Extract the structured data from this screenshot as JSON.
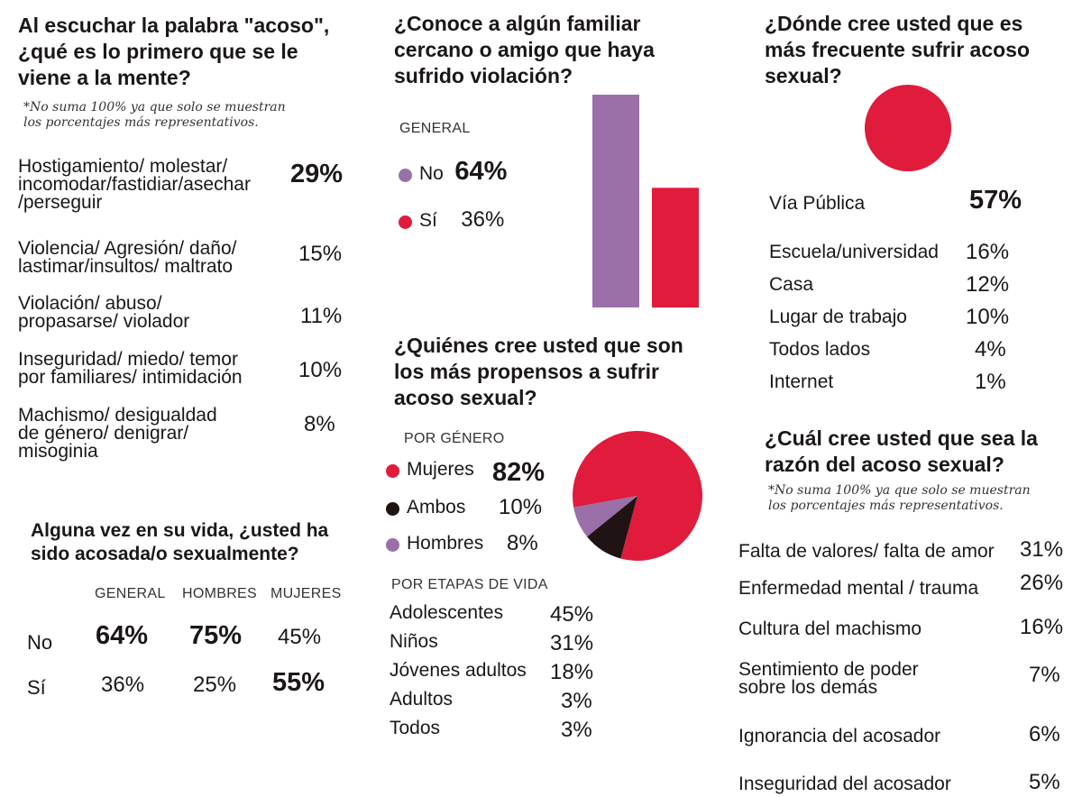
{
  "colors": {
    "purple": "#9b6fa8",
    "red": "#e01b3c",
    "black": "#1f1413",
    "white": "#ffffff"
  },
  "q1": {
    "title_lines": [
      "Al escuchar la palabra \"acoso\",",
      "¿qué es lo primero que se le",
      "viene a la mente?"
    ],
    "note_lines": [
      "*No suma 100% ya que solo se muestran",
      "los porcentajes más representativos."
    ],
    "rows": [
      {
        "lines": [
          "Hostigamiento/ molestar/",
          "incomodar/fastidiar/asechar",
          "/perseguir"
        ],
        "value": "29%"
      },
      {
        "lines": [
          "Violencia/ Agresión/ daño/",
          "lastimar/insultos/ maltrato"
        ],
        "value": "15%"
      },
      {
        "lines": [
          "Violación/ abuso/",
          "propasarse/ violador"
        ],
        "value": "11%"
      },
      {
        "lines": [
          "Inseguridad/ miedo/ temor",
          "por familiares/ intimidación"
        ],
        "value": "10%"
      },
      {
        "lines": [
          "Machismo/ desigualdad",
          "de género/ denigrar/",
          "misoginia"
        ],
        "value": "8%"
      }
    ]
  },
  "q2": {
    "title_lines": [
      "Alguna vez en su vida, ¿usted ha",
      "sido acosada/o sexualmente?"
    ],
    "columns": [
      "GENERAL",
      "HOMBRES",
      "MUJERES"
    ],
    "rows": [
      {
        "label": "No",
        "values": [
          "64%",
          "75%",
          "45%"
        ]
      },
      {
        "label": "Sí",
        "values": [
          "36%",
          "25%",
          "55%"
        ]
      }
    ]
  },
  "q3": {
    "title_lines": [
      "¿Conoce a algún familiar",
      "cercano o amigo que haya",
      "sufrido violación?"
    ],
    "caption": "GENERAL",
    "legend": [
      {
        "label": "No",
        "value": "64%"
      },
      {
        "label": "Sí",
        "value": "36%"
      }
    ]
  },
  "q4": {
    "title_lines": [
      "¿Quiénes cree usted que son",
      "los más propensos a sufrir",
      "acoso sexual?"
    ],
    "caption_gender": "POR GÉNERO",
    "legend": [
      {
        "label": "Mujeres",
        "value": "82%"
      },
      {
        "label": "Ambos",
        "value": "10%"
      },
      {
        "label": "Hombres",
        "value": "8%"
      }
    ],
    "caption_stage": "POR ETAPAS DE VIDA",
    "stages": [
      {
        "label": "Adolescentes",
        "value": "45%"
      },
      {
        "label": "Niños",
        "value": "31%"
      },
      {
        "label": "Jóvenes adultos",
        "value": "18%"
      },
      {
        "label": "Adultos",
        "value": "3%"
      },
      {
        "label": "Todos",
        "value": "3%"
      }
    ]
  },
  "q5": {
    "title_lines": [
      "¿Dónde cree usted que es",
      "más frecuente sufrir acoso",
      "sexual?"
    ],
    "top": {
      "label": "Vía Pública",
      "value": "57%"
    },
    "rows": [
      {
        "label": "Escuela/universidad",
        "value": "16%"
      },
      {
        "label": "Casa",
        "value": "12%"
      },
      {
        "label": "Lugar de trabajo",
        "value": "10%"
      },
      {
        "label": "Todos lados",
        "value": "4%"
      },
      {
        "label": "Internet",
        "value": "1%"
      }
    ]
  },
  "q6": {
    "title_lines": [
      "¿Cuál cree usted que sea la",
      "razón del acoso sexual?"
    ],
    "note_lines": [
      "*No suma 100% ya que solo se muestran",
      "los porcentajes más representativos."
    ],
    "rows": [
      {
        "lines": [
          "Falta de valores/ falta de amor"
        ],
        "value": "31%"
      },
      {
        "lines": [
          "Enfermedad mental / trauma"
        ],
        "value": "26%"
      },
      {
        "lines": [
          "Cultura del machismo"
        ],
        "value": "16%"
      },
      {
        "lines": [
          "Sentimiento de poder",
          "sobre los demás"
        ],
        "value": "7%"
      },
      {
        "lines": [
          "Ignorancia del acosador"
        ],
        "value": "6%"
      },
      {
        "lines": [
          "Inseguridad del acosador"
        ],
        "value": "5%"
      }
    ]
  },
  "chart_data": [
    {
      "type": "bar",
      "title": "¿Conoce a algún familiar cercano o amigo que haya sufrido violación?",
      "categories": [
        "No",
        "Sí"
      ],
      "values": [
        64,
        36
      ],
      "ylim": [
        0,
        64
      ]
    },
    {
      "type": "pie",
      "title": "¿Quiénes cree usted que son los más propensos a sufrir acoso sexual? (Por género)",
      "categories": [
        "Mujeres",
        "Ambos",
        "Hombres"
      ],
      "values": [
        82,
        10,
        8
      ]
    },
    {
      "type": "pie",
      "title": "¿Dónde cree usted que es más frecuente sufrir acoso sexual?",
      "categories": [
        "Vía Pública"
      ],
      "values": [
        57
      ]
    }
  ]
}
